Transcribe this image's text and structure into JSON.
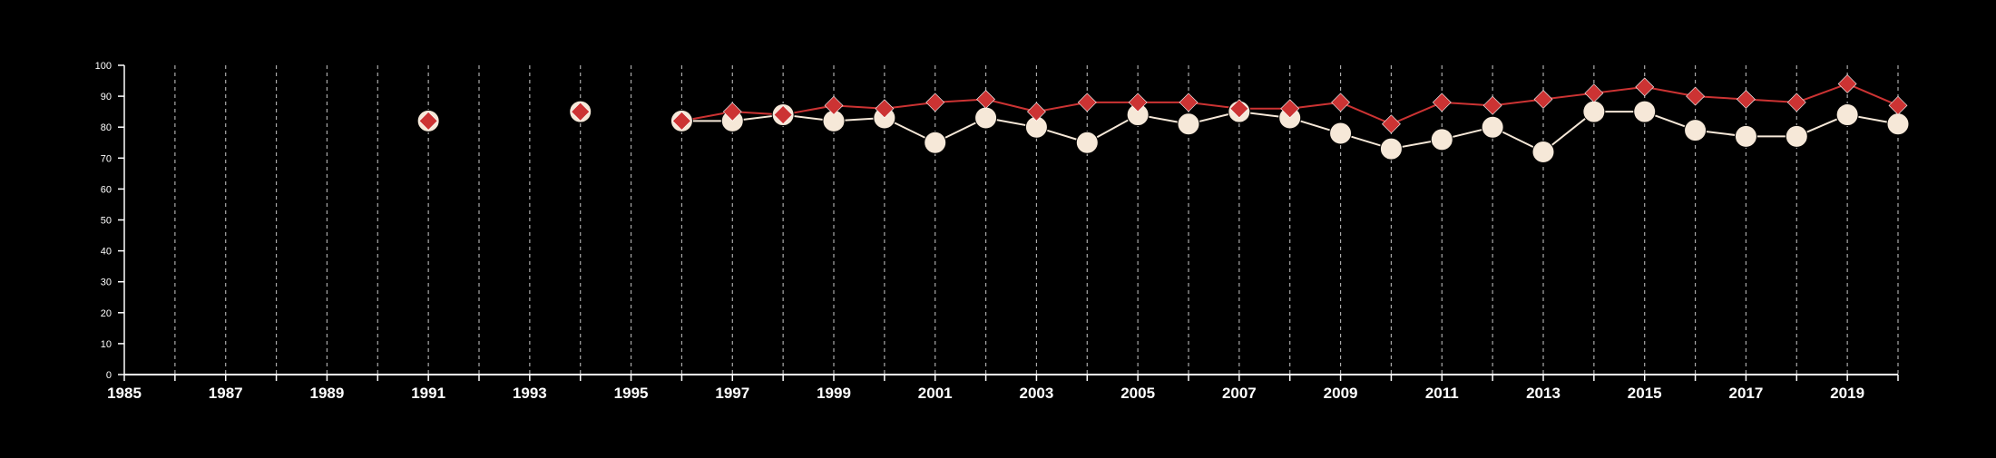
{
  "chart_data": {
    "type": "line",
    "title": "",
    "xlabel": "",
    "ylabel": "",
    "xlim": [
      1985,
      2020
    ],
    "ylim": [
      0,
      100
    ],
    "y_ticks": [
      0,
      10,
      20,
      30,
      40,
      50,
      60,
      70,
      80,
      90,
      100
    ],
    "x_tick_labels": [
      "1985",
      "1987",
      "1989",
      "1991",
      "1993",
      "1995",
      "1997",
      "1999",
      "2001",
      "2003",
      "2005",
      "2007",
      "2009",
      "2011",
      "2013",
      "2015",
      "2017",
      "2019"
    ],
    "grid": "vertical dashed lines at every year",
    "legend": "none",
    "series": [
      {
        "marker": "circle",
        "color": "#f6e8d8",
        "points": [
          [
            1991,
            82
          ],
          [
            1994,
            85
          ],
          [
            1996,
            82
          ],
          [
            1997,
            82
          ],
          [
            1998,
            84
          ],
          [
            1999,
            82
          ],
          [
            2000,
            83
          ],
          [
            2001,
            75
          ],
          [
            2002,
            83
          ],
          [
            2003,
            80
          ],
          [
            2004,
            75
          ],
          [
            2005,
            84
          ],
          [
            2006,
            81
          ],
          [
            2007,
            85
          ],
          [
            2008,
            83
          ],
          [
            2009,
            78
          ],
          [
            2010,
            73
          ],
          [
            2011,
            76
          ],
          [
            2012,
            80
          ],
          [
            2013,
            72
          ],
          [
            2014,
            85
          ],
          [
            2015,
            85
          ],
          [
            2016,
            79
          ],
          [
            2017,
            77
          ],
          [
            2018,
            77
          ],
          [
            2019,
            84
          ],
          [
            2020,
            81
          ]
        ]
      },
      {
        "marker": "diamond",
        "color": "#cc3333",
        "points": [
          [
            1991,
            82
          ],
          [
            1994,
            85
          ],
          [
            1996,
            82
          ],
          [
            1997,
            85
          ],
          [
            1998,
            84
          ],
          [
            1999,
            87
          ],
          [
            2000,
            86
          ],
          [
            2001,
            88
          ],
          [
            2002,
            89
          ],
          [
            2003,
            85
          ],
          [
            2004,
            88
          ],
          [
            2005,
            88
          ],
          [
            2006,
            88
          ],
          [
            2007,
            86
          ],
          [
            2008,
            86
          ],
          [
            2009,
            88
          ],
          [
            2010,
            81
          ],
          [
            2011,
            88
          ],
          [
            2012,
            87
          ],
          [
            2013,
            89
          ],
          [
            2014,
            91
          ],
          [
            2015,
            93
          ],
          [
            2016,
            90
          ],
          [
            2017,
            89
          ],
          [
            2018,
            88
          ],
          [
            2019,
            94
          ],
          [
            2020,
            87
          ]
        ]
      }
    ]
  }
}
